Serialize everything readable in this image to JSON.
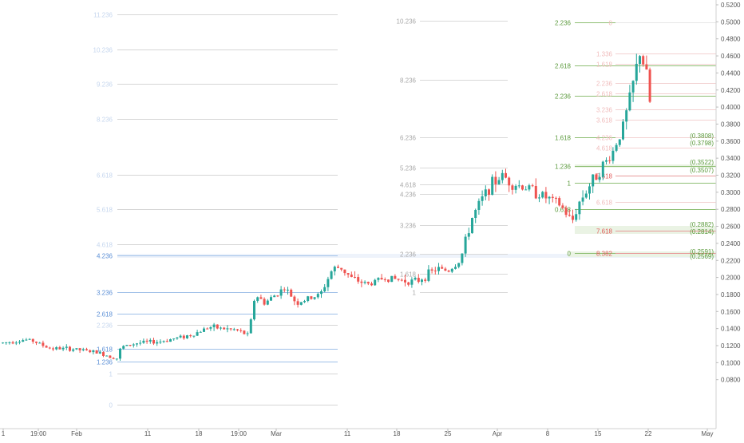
{
  "chart_data": {
    "type": "candlestick",
    "title": "",
    "xlabel": "",
    "ylabel": "",
    "grid": false,
    "ylim": [
      0.1,
      0.525
    ],
    "x_ticks": [
      "1",
      "19:00",
      "Feb",
      "11",
      "18",
      "19:00",
      "Mar",
      "11",
      "18",
      "25",
      "Apr",
      "8",
      "15",
      "22",
      "May"
    ],
    "y_ticks": [
      "0.5200",
      "0.5000",
      "0.4800",
      "0.4600",
      "0.4400",
      "0.4200",
      "0.4000",
      "0.3800",
      "0.3600",
      "0.3400",
      "0.3200",
      "0.3000",
      "0.2800",
      "0.2600",
      "0.2400",
      "0.2200",
      "0.2000",
      "0.1800",
      "0.1600",
      "0.1400",
      "0.1200",
      "0.1000",
      "0.0800"
    ],
    "price_tags": [
      {
        "label": "(0.3808)",
        "color": "#5b9a3c"
      },
      {
        "label": "(0.3798)",
        "color": "#5b9a3c"
      },
      {
        "label": "(0.3522)",
        "color": "#5b9a3c"
      },
      {
        "label": "(0.3507)",
        "color": "#5b9a3c"
      },
      {
        "label": "(0.2882)",
        "color": "#5b9a3c"
      },
      {
        "label": "(0.2814)",
        "color": "#5b9a3c"
      },
      {
        "label": "(0.2591)",
        "color": "#5b9a3c"
      },
      {
        "label": "(0.2569)",
        "color": "#5b9a3c"
      }
    ],
    "fib_sets": [
      {
        "name": "blue",
        "color": "#5b8fd6",
        "levels": [
          {
            "label": "11.236",
            "faded": true
          },
          {
            "label": "10.236",
            "faded": true
          },
          {
            "label": "9.236",
            "faded": true
          },
          {
            "label": "8.236",
            "faded": true
          },
          {
            "label": "6.618",
            "faded": true
          },
          {
            "label": "5.618",
            "faded": true
          },
          {
            "label": "4.618",
            "faded": true
          },
          {
            "label": "4.236",
            "faded": false
          },
          {
            "label": "3.236",
            "faded": false
          },
          {
            "label": "2.618",
            "faded": false
          },
          {
            "label": "2.236",
            "faded": true
          },
          {
            "label": "1.618",
            "faded": false
          },
          {
            "label": "1.236",
            "faded": false
          },
          {
            "label": "1",
            "faded": true
          },
          {
            "label": "0",
            "faded": true
          }
        ]
      },
      {
        "name": "grey",
        "color": "#9a9a9a",
        "levels": [
          {
            "label": "10.236"
          },
          {
            "label": "8.236"
          },
          {
            "label": "6.236"
          },
          {
            "label": "5.236"
          },
          {
            "label": "4.618"
          },
          {
            "label": "4.236"
          },
          {
            "label": "3.236"
          },
          {
            "label": "2.236"
          },
          {
            "label": "1.618"
          },
          {
            "label": "1"
          }
        ]
      },
      {
        "name": "green",
        "color": "#5b9a3c",
        "levels": [
          {
            "label": "2.236"
          },
          {
            "label": "2.618"
          },
          {
            "label": "2.236"
          },
          {
            "label": "1.618"
          },
          {
            "label": "1.236"
          },
          {
            "label": "1"
          },
          {
            "label": "0.618"
          },
          {
            "label": "0"
          }
        ]
      },
      {
        "name": "red",
        "color": "#e25a5a",
        "levels": [
          {
            "label": "0"
          },
          {
            "label": "1.336"
          },
          {
            "label": "1.618"
          },
          {
            "label": "2.236"
          },
          {
            "label": "2.618"
          },
          {
            "label": "3.236"
          },
          {
            "label": "3.618"
          },
          {
            "label": "4.236"
          },
          {
            "label": "4.618"
          },
          {
            "label": "5.618"
          },
          {
            "label": "6.618"
          },
          {
            "label": "7.618"
          },
          {
            "label": "8.382"
          }
        ]
      }
    ],
    "colors": {
      "up": "#26a69a",
      "down": "#ef5350",
      "grey": "#c8c8c8",
      "axis_text": "#555555",
      "price_tag": "#5b9a3c"
    }
  }
}
